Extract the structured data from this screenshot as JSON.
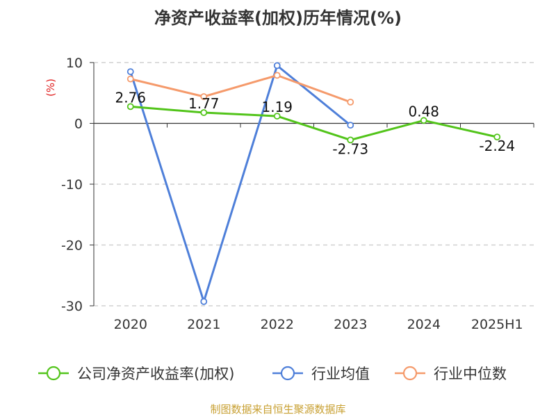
{
  "title": "净资产收益率(加权)历年情况(%)",
  "footer": "制图数据来自恒生聚源数据库",
  "colors": {
    "company": "#52c41a",
    "industry_avg": "#4e7fd9",
    "industry_median": "#f59a6b",
    "unit_label": "#e02020",
    "axis_text": "#333333",
    "grid": "#c8c8c8"
  },
  "chart_data": {
    "type": "line",
    "title": "净资产收益率(加权)历年情况(%)",
    "ylabel": "(%)",
    "xlabel": "",
    "categories": [
      "2020",
      "2021",
      "2022",
      "2023",
      "2024",
      "2025H1"
    ],
    "ylim": [
      -30,
      10
    ],
    "yticks": [
      10,
      0,
      -10,
      -20,
      -30
    ],
    "grid": true,
    "legend_position": "bottom",
    "series": [
      {
        "name": "公司净资产收益率(加权)",
        "color": "#52c41a",
        "values": [
          2.76,
          1.77,
          1.19,
          -2.73,
          0.48,
          -2.24
        ],
        "labels": [
          "2.76",
          "1.77",
          "1.19",
          "-2.73",
          "0.48",
          "-2.24"
        ]
      },
      {
        "name": "行业均值",
        "color": "#4e7fd9",
        "values": [
          8.5,
          -29.3,
          9.5,
          -0.3,
          null,
          null
        ]
      },
      {
        "name": "行业中位数",
        "color": "#f59a6b",
        "values": [
          7.3,
          4.4,
          7.9,
          3.5,
          null,
          null
        ]
      }
    ]
  }
}
